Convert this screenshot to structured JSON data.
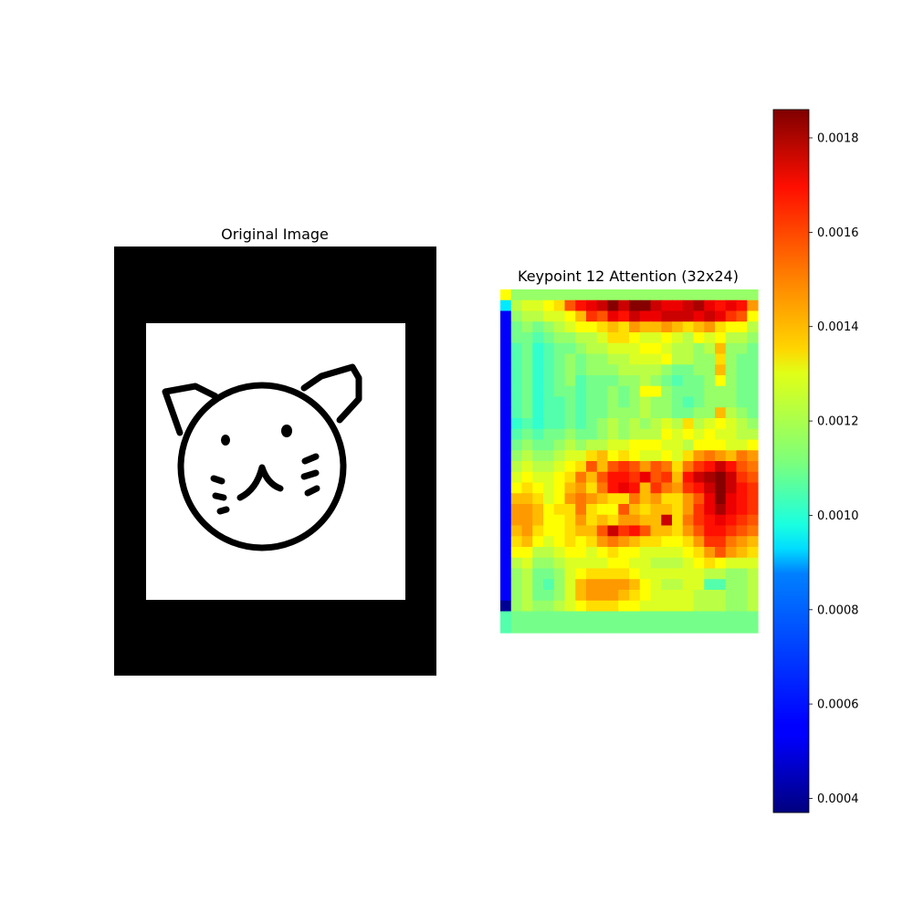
{
  "chart_data": [
    {
      "type": "image",
      "title": "Original Image",
      "image": "cat line drawing (black outline on white, framed by black border)"
    },
    {
      "type": "heatmap",
      "title": "Keypoint 12 Attention (32x24)",
      "rows": 32,
      "cols": 24,
      "colormap": "jet",
      "vmin": 0.00037,
      "vmax": 0.00186,
      "colorbar": {
        "ticks": [
          0.0004,
          0.0006,
          0.0008,
          0.001,
          0.0012,
          0.0014,
          0.0016,
          0.0018
        ],
        "tick_labels": [
          "0.0004",
          "0.0006",
          "0.0008",
          "0.0010",
          "0.0012",
          "0.0014",
          "0.0016",
          "0.0018"
        ]
      },
      "values": [
        [
          1300,
          1150,
          1150,
          1150,
          1150,
          1150,
          1150,
          1150,
          1150,
          1150,
          1150,
          1150,
          1150,
          1150,
          1150,
          1150,
          1150,
          1150,
          1150,
          1150,
          1150,
          1150,
          1150,
          1150
        ],
        [
          900,
          1200,
          1250,
          1250,
          1300,
          1350,
          1550,
          1650,
          1700,
          1750,
          1850,
          1750,
          1850,
          1850,
          1750,
          1700,
          1700,
          1750,
          1800,
          1700,
          1650,
          1700,
          1650,
          1450
        ],
        [
          550,
          1150,
          1200,
          1200,
          1250,
          1250,
          1300,
          1400,
          1600,
          1550,
          1700,
          1650,
          1750,
          1700,
          1700,
          1750,
          1750,
          1750,
          1700,
          1750,
          1700,
          1600,
          1550,
          1300
        ],
        [
          550,
          1100,
          1150,
          1100,
          1150,
          1200,
          1250,
          1300,
          1300,
          1350,
          1400,
          1350,
          1450,
          1400,
          1400,
          1450,
          1400,
          1350,
          1400,
          1450,
          1350,
          1300,
          1300,
          1200
        ],
        [
          550,
          1100,
          1100,
          1050,
          1100,
          1150,
          1150,
          1200,
          1200,
          1250,
          1350,
          1350,
          1300,
          1250,
          1250,
          1300,
          1250,
          1200,
          1300,
          1250,
          1300,
          1200,
          1200,
          1150
        ],
        [
          550,
          1050,
          1100,
          1000,
          1050,
          1100,
          1100,
          1150,
          1200,
          1200,
          1250,
          1250,
          1250,
          1300,
          1300,
          1250,
          1200,
          1200,
          1150,
          1200,
          1400,
          1150,
          1150,
          1100
        ],
        [
          550,
          1050,
          1100,
          1000,
          1050,
          1100,
          1150,
          1100,
          1150,
          1150,
          1200,
          1200,
          1250,
          1250,
          1250,
          1300,
          1200,
          1200,
          1150,
          1150,
          1350,
          1150,
          1100,
          1100
        ],
        [
          550,
          1050,
          1100,
          1000,
          1050,
          1100,
          1150,
          1100,
          1150,
          1150,
          1150,
          1200,
          1200,
          1200,
          1200,
          1150,
          1100,
          1100,
          1150,
          1150,
          1400,
          1150,
          1100,
          1100
        ],
        [
          550,
          1050,
          1100,
          1000,
          1050,
          1100,
          1150,
          1050,
          1100,
          1100,
          1100,
          1150,
          1150,
          1200,
          1150,
          1100,
          1050,
          1100,
          1100,
          1150,
          1300,
          1150,
          1100,
          1100
        ],
        [
          550,
          1050,
          1100,
          1000,
          1050,
          1100,
          1100,
          1050,
          1100,
          1100,
          1150,
          1100,
          1150,
          1300,
          1300,
          1150,
          1100,
          1100,
          1100,
          1150,
          1150,
          1150,
          1100,
          1100
        ],
        [
          550,
          1050,
          1100,
          1000,
          1050,
          1050,
          1100,
          1050,
          1100,
          1100,
          1150,
          1100,
          1150,
          1200,
          1150,
          1150,
          1100,
          1050,
          1100,
          1150,
          1150,
          1150,
          1100,
          1100
        ],
        [
          550,
          1050,
          1100,
          1000,
          1050,
          1050,
          1100,
          1050,
          1100,
          1100,
          1150,
          1150,
          1150,
          1200,
          1150,
          1150,
          1100,
          1100,
          1150,
          1150,
          1400,
          1200,
          1150,
          1100
        ],
        [
          550,
          1000,
          1050,
          1000,
          1050,
          1050,
          1100,
          1050,
          1100,
          1150,
          1200,
          1150,
          1200,
          1150,
          1200,
          1250,
          1200,
          1350,
          1200,
          1250,
          1300,
          1250,
          1200,
          1150
        ],
        [
          550,
          1050,
          1100,
          1050,
          1100,
          1100,
          1150,
          1100,
          1100,
          1150,
          1200,
          1150,
          1200,
          1200,
          1200,
          1300,
          1250,
          1300,
          1250,
          1300,
          1250,
          1250,
          1200,
          1200
        ],
        [
          550,
          1100,
          1150,
          1100,
          1100,
          1150,
          1200,
          1150,
          1200,
          1200,
          1250,
          1250,
          1300,
          1300,
          1300,
          1250,
          1250,
          1200,
          1300,
          1300,
          1300,
          1250,
          1250,
          1300
        ],
        [
          550,
          1150,
          1200,
          1150,
          1150,
          1200,
          1250,
          1250,
          1350,
          1400,
          1300,
          1350,
          1300,
          1250,
          1250,
          1300,
          1250,
          1350,
          1450,
          1500,
          1450,
          1400,
          1500,
          1450
        ],
        [
          550,
          1200,
          1250,
          1200,
          1200,
          1250,
          1300,
          1350,
          1550,
          1400,
          1550,
          1600,
          1550,
          1450,
          1550,
          1500,
          1350,
          1500,
          1600,
          1650,
          1750,
          1650,
          1550,
          1500
        ],
        [
          550,
          1250,
          1300,
          1250,
          1250,
          1300,
          1350,
          1500,
          1400,
          1550,
          1650,
          1650,
          1600,
          1700,
          1550,
          1600,
          1400,
          1650,
          1750,
          1800,
          1850,
          1750,
          1600,
          1550
        ],
        [
          550,
          1300,
          1350,
          1300,
          1250,
          1300,
          1400,
          1450,
          1350,
          1500,
          1650,
          1700,
          1650,
          1400,
          1600,
          1500,
          1450,
          1600,
          1650,
          1750,
          1850,
          1750,
          1650,
          1600
        ],
        [
          550,
          1400,
          1400,
          1350,
          1250,
          1300,
          1450,
          1500,
          1450,
          1400,
          1350,
          1350,
          1500,
          1400,
          1450,
          1350,
          1350,
          1450,
          1550,
          1700,
          1850,
          1700,
          1650,
          1600
        ],
        [
          550,
          1450,
          1450,
          1400,
          1300,
          1350,
          1350,
          1500,
          1350,
          1300,
          1300,
          1550,
          1400,
          1350,
          1400,
          1400,
          1350,
          1450,
          1600,
          1700,
          1800,
          1700,
          1650,
          1600
        ],
        [
          550,
          1450,
          1450,
          1400,
          1300,
          1300,
          1350,
          1450,
          1350,
          1400,
          1350,
          1450,
          1450,
          1400,
          1400,
          1750,
          1350,
          1500,
          1600,
          1650,
          1700,
          1650,
          1600,
          1550
        ],
        [
          550,
          1400,
          1450,
          1350,
          1300,
          1300,
          1350,
          1400,
          1400,
          1550,
          1750,
          1600,
          1650,
          1550,
          1400,
          1400,
          1350,
          1450,
          1550,
          1650,
          1650,
          1600,
          1550,
          1500
        ],
        [
          550,
          1350,
          1400,
          1300,
          1250,
          1300,
          1350,
          1300,
          1350,
          1450,
          1500,
          1450,
          1400,
          1350,
          1350,
          1300,
          1300,
          1350,
          1450,
          1600,
          1600,
          1500,
          1450,
          1400
        ],
        [
          550,
          1300,
          1300,
          1200,
          1200,
          1250,
          1300,
          1300,
          1250,
          1300,
          1350,
          1300,
          1300,
          1250,
          1250,
          1250,
          1250,
          1300,
          1350,
          1450,
          1550,
          1450,
          1400,
          1350
        ],
        [
          550,
          1200,
          1250,
          1150,
          1150,
          1200,
          1250,
          1250,
          1250,
          1250,
          1300,
          1300,
          1250,
          1250,
          1200,
          1200,
          1200,
          1250,
          1300,
          1350,
          1300,
          1250,
          1250,
          1250
        ],
        [
          550,
          1150,
          1200,
          1100,
          1100,
          1150,
          1250,
          1300,
          1350,
          1350,
          1350,
          1350,
          1300,
          1250,
          1250,
          1250,
          1250,
          1250,
          1250,
          1200,
          1200,
          1150,
          1150,
          1200
        ],
        [
          550,
          1150,
          1200,
          1100,
          1050,
          1150,
          1250,
          1400,
          1450,
          1450,
          1450,
          1450,
          1400,
          1300,
          1250,
          1200,
          1200,
          1250,
          1250,
          1050,
          1050,
          1150,
          1150,
          1200
        ],
        [
          550,
          1150,
          1200,
          1100,
          1100,
          1150,
          1250,
          1400,
          1450,
          1450,
          1450,
          1400,
          1350,
          1300,
          1250,
          1250,
          1250,
          1250,
          1200,
          1200,
          1200,
          1150,
          1150,
          1200
        ],
        [
          400,
          1150,
          1200,
          1150,
          1150,
          1200,
          1250,
          1300,
          1350,
          1350,
          1350,
          1300,
          1300,
          1250,
          1250,
          1250,
          1250,
          1250,
          1200,
          1200,
          1200,
          1150,
          1150,
          1200
        ],
        [
          1050,
          1100,
          1100,
          1100,
          1100,
          1100,
          1100,
          1100,
          1100,
          1100,
          1100,
          1100,
          1100,
          1100,
          1100,
          1100,
          1100,
          1100,
          1100,
          1100,
          1100,
          1100,
          1100,
          1100
        ],
        [
          1050,
          1100,
          1100,
          1100,
          1100,
          1100,
          1100,
          1100,
          1100,
          1100,
          1100,
          1100,
          1100,
          1100,
          1100,
          1100,
          1100,
          1100,
          1100,
          1100,
          1100,
          1100,
          1100,
          1100
        ]
      ],
      "values_scale": 1e-06
    }
  ]
}
